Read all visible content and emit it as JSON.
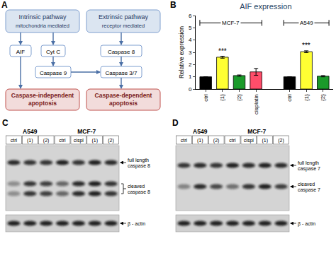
{
  "panels": {
    "A": {
      "label": "A",
      "nodes": {
        "intrinsic": {
          "title": "Intrinsic pathway",
          "subtitle": "mitochondria mediated"
        },
        "extrinsic": {
          "title": "Extrinsic pathway",
          "subtitle": "receptor mediated"
        },
        "aif": "AIF",
        "cytc": "Cyt C",
        "casp8": "Caspase 8",
        "casp9": "Caspase 9",
        "casp37": "Caspase 3/7",
        "indep": "Caspase-independent apoptosis",
        "dep": "Caspase-dependent apoptosis"
      }
    },
    "B": {
      "label": "B"
    },
    "C": {
      "label": "C",
      "groups": [
        {
          "name": "A549",
          "lanes": [
            "ctrl",
            "(1)",
            "(2)"
          ]
        },
        {
          "name": "MCF-7",
          "lanes": [
            "ctrl",
            "cispl",
            "(1)",
            "(2)"
          ]
        }
      ],
      "bands": [
        [
          "full length",
          "caspase 8"
        ],
        [
          "cleaved",
          "caspase 8"
        ],
        [
          "β - actin"
        ]
      ]
    },
    "D": {
      "label": "D",
      "groups": [
        {
          "name": "A549",
          "lanes": [
            "ctrl",
            "(1)",
            "(2)"
          ]
        },
        {
          "name": "MCF-7",
          "lanes": [
            "ctrl",
            "cispl",
            "(1)",
            "(2)"
          ]
        }
      ],
      "bands": [
        [
          "full length",
          "caspase 7"
        ],
        [
          "cleaved",
          "caspase 7"
        ],
        [
          "β - actin"
        ]
      ]
    }
  },
  "chart_data": {
    "type": "bar",
    "title": "AIF expression",
    "y_label": "Relative expression",
    "categories": [
      "ctrl",
      "{1}",
      "{2}",
      "cisplatin",
      null,
      "ctrl",
      "{1}",
      "{2}"
    ],
    "values": [
      1,
      2.6,
      1.1,
      1.4,
      null,
      1,
      3.05,
      1.05
    ],
    "errors": [
      0,
      0.08,
      0.05,
      0.28,
      null,
      0,
      0.07,
      0.05
    ],
    "colors": [
      "#000000",
      "#ffff33",
      "#1a9a2a",
      "#ff4d6a",
      null,
      "#000000",
      "#ffff33",
      "#1a9a2a"
    ],
    "significance": [
      null,
      "***",
      null,
      null,
      null,
      null,
      "***",
      null
    ],
    "group_labels": [
      "MCF-7",
      "A549"
    ],
    "ylim": [
      0,
      6
    ],
    "yticks": [
      0,
      1,
      2,
      3,
      4,
      5,
      6
    ],
    "grid": false
  }
}
